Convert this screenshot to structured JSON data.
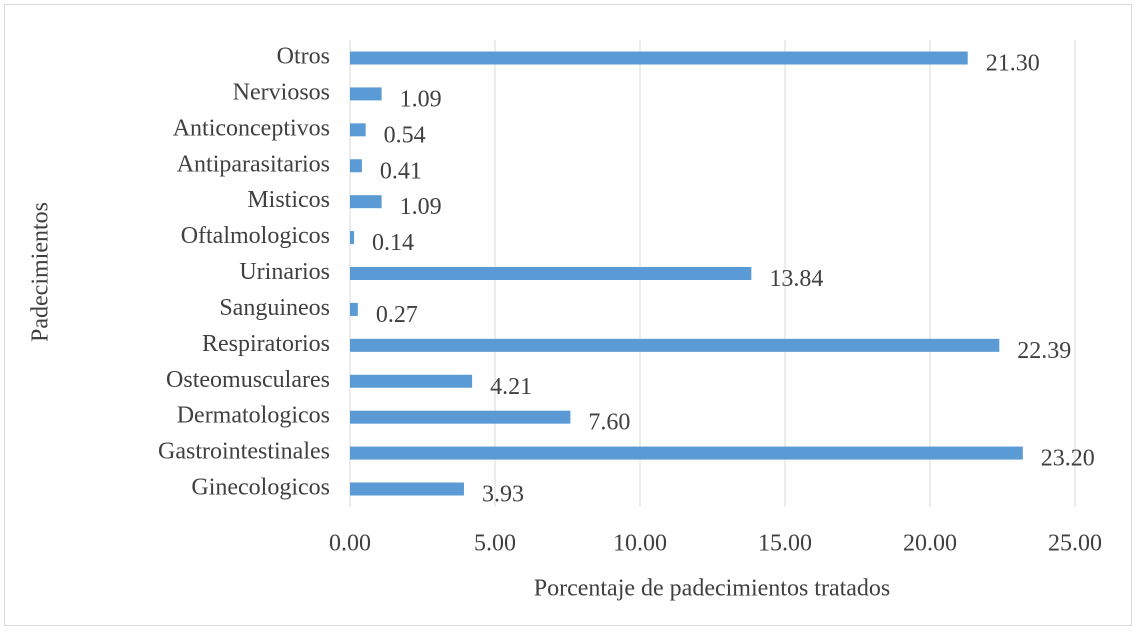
{
  "chart_data": {
    "type": "bar",
    "orientation": "horizontal",
    "x_label": "Porcentaje de padecimientos tratados",
    "y_label": "Padecimientos",
    "categories": [
      "Ginecologicos",
      "Gastrointestinales",
      "Dermatologicos",
      "Osteomusculares",
      "Respiratorios",
      "Sanguineos",
      "Urinarios",
      "Oftalmologicos",
      "Misticos",
      "Antiparasitarios",
      "Anticonceptivos",
      "Nerviosos",
      "Otros"
    ],
    "values": [
      3.93,
      23.2,
      7.6,
      4.21,
      22.39,
      0.27,
      13.84,
      0.14,
      1.09,
      0.41,
      0.54,
      1.09,
      21.3
    ],
    "value_labels": [
      "3.93",
      "23.20",
      "7.60",
      "4.21",
      "22.39",
      "0.27",
      "13.84",
      "0.14",
      "1.09",
      "0.41",
      "0.54",
      "1.09",
      "21.30"
    ],
    "color": "#5b9bd5",
    "xlim": [
      0,
      25
    ],
    "xticks": [
      {
        "value": 0,
        "label": "0.00"
      },
      {
        "value": 5,
        "label": "5.00"
      },
      {
        "value": 10,
        "label": "10.00"
      },
      {
        "value": 15,
        "label": "15.00"
      },
      {
        "value": 20,
        "label": "20.00"
      },
      {
        "value": 25,
        "label": "25.00"
      }
    ],
    "grid": true
  }
}
